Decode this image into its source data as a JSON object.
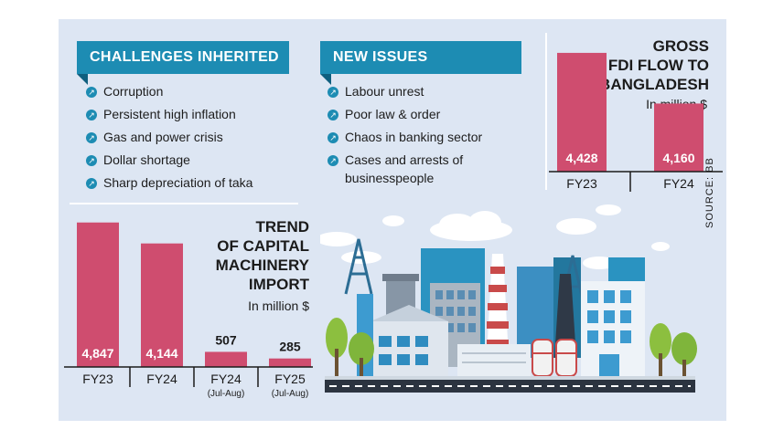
{
  "challenges": {
    "title": "CHALLENGES INHERITED",
    "items": [
      "Corruption",
      "Persistent high inflation",
      "Gas and power crisis",
      "Dollar shortage",
      "Sharp depreciation of taka"
    ]
  },
  "new_issues": {
    "title": "NEW ISSUES",
    "items": [
      "Labour unrest",
      "Poor law & order",
      "Chaos in banking sector",
      "Cases and arrests of businesspeople"
    ]
  },
  "source": "SOURCE: BB",
  "colors": {
    "bar": "#cf4d6f",
    "banner": "#1d8cb3",
    "panel": "#dde6f3"
  },
  "chart_data": [
    {
      "type": "bar",
      "title_lines": [
        "GROSS",
        "FDI FLOW TO",
        "BANGLADESH"
      ],
      "unit": "In million $",
      "categories": [
        "FY23",
        "FY24"
      ],
      "category_sub": [
        "",
        ""
      ],
      "values": [
        4428,
        4160
      ],
      "value_labels": [
        "4,428",
        "4,160"
      ],
      "ylim": [
        3800,
        4500
      ]
    },
    {
      "type": "bar",
      "title_lines": [
        "TREND",
        "OF CAPITAL",
        "MACHINERY",
        "IMPORT"
      ],
      "unit": "In million $",
      "categories": [
        "FY23",
        "FY24",
        "FY24",
        "FY25"
      ],
      "category_sub": [
        "",
        "",
        "(Jul-Aug)",
        "(Jul-Aug)"
      ],
      "values": [
        4847,
        4144,
        507,
        285
      ],
      "value_labels": [
        "4,847",
        "4,144",
        "507",
        "285"
      ],
      "ylim": [
        0,
        4900
      ]
    }
  ]
}
